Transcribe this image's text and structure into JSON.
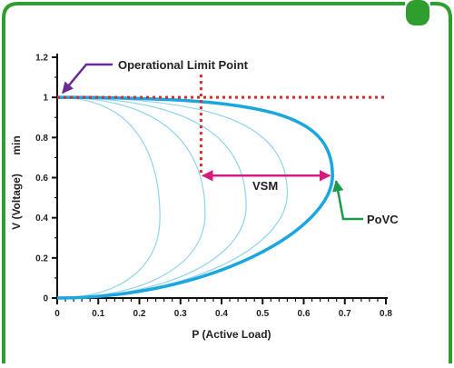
{
  "chart_data": {
    "type": "line",
    "title": "",
    "xlabel": "P  (Active Load)",
    "ylabel": "V (Voltage)",
    "ylabel_suffix": "min",
    "xlim": [
      0,
      0.8
    ],
    "ylim": [
      0,
      1.2
    ],
    "x_ticks": [
      "0",
      "0.1",
      "0.2",
      "0.3",
      "0.4",
      "0.5",
      "0.6",
      "0.7",
      "0.8"
    ],
    "y_ticks": [
      "0",
      "0.2",
      "0.4",
      "0.6",
      "0.8",
      "1",
      "1.2"
    ],
    "grid": false,
    "series": [
      {
        "role": "pv-curve-light",
        "color": "#8fd3f0",
        "tip": [
          0.25,
          0.4
        ]
      },
      {
        "role": "pv-curve-light",
        "color": "#8fd3f0",
        "tip": [
          0.36,
          0.42
        ]
      },
      {
        "role": "pv-curve-light",
        "color": "#8fd3f0",
        "tip": [
          0.46,
          0.46
        ]
      },
      {
        "role": "pv-curve-light",
        "color": "#8fd3f0",
        "tip": [
          0.56,
          0.52
        ]
      },
      {
        "role": "pv-curve-main",
        "color": "#1aa6df",
        "tip": [
          0.67,
          0.61
        ]
      }
    ],
    "curve_start": [
      0,
      1.0
    ],
    "curve_end": [
      0,
      0
    ],
    "limit_lines": {
      "color": "#d42a2a",
      "v_limit": 1.0,
      "p_step": 0.35,
      "step_down_to_v": 0.61
    },
    "vsm_arrow": {
      "from_x": 0.35,
      "to_x": 0.67,
      "y": 0.61,
      "color": "#d81b7f"
    },
    "annotations": {
      "operational_limit_point": {
        "text": "Operational Limit Point",
        "at": [
          0,
          1.0
        ],
        "color": "#6a2a9a"
      },
      "vsm": {
        "text": "VSM"
      },
      "povc": {
        "text": "PoVC",
        "at": [
          0.67,
          0.61
        ],
        "color": "#1a9a4a"
      }
    }
  },
  "frame": {
    "border_color": "#2e9e2e"
  }
}
